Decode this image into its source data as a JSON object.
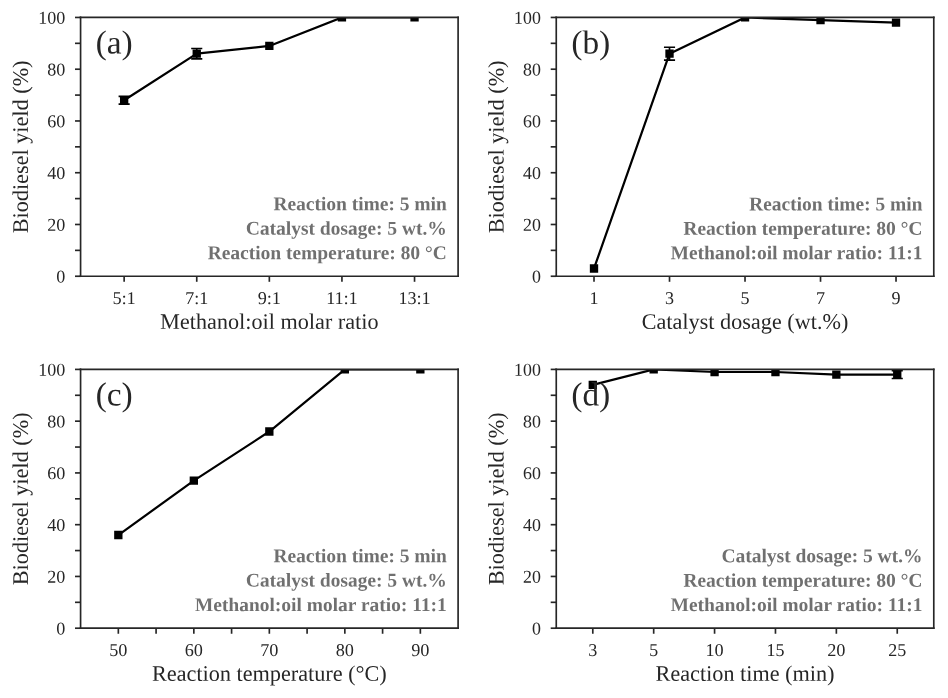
{
  "chart_data": [
    {
      "type": "line",
      "categories": [
        "5:1",
        "7:1",
        "9:1",
        "11:1",
        "13:1"
      ],
      "xlabel": "Methanol:oil molar ratio",
      "ylabel": "Biodiesel yield (%)",
      "ylim": [
        0,
        100
      ],
      "yticks": [
        0,
        {
          "value": 10,
          "label": null
        },
        20,
        {
          "value": 30,
          "label": null
        },
        40,
        {
          "value": 50,
          "label": null
        },
        60,
        {
          "value": 70,
          "label": null
        },
        80,
        {
          "value": 90,
          "label": null
        },
        100
      ],
      "marker": "square",
      "grid": false,
      "series": [
        {
          "color": "#000000",
          "values": [
            68,
            86,
            89,
            100,
            100
          ],
          "errors": [
            1.5,
            2,
            null,
            null,
            null
          ]
        }
      ],
      "annotations": [
        "(a)",
        "Reaction time: 5 min",
        "Catalyst dosage: 5 wt.%",
        "Reaction temperature: 80 °C"
      ]
    },
    {
      "type": "line",
      "x": [
        1,
        3,
        5,
        7,
        9
      ],
      "xlim": [
        0,
        10
      ],
      "xticks": [
        1,
        3,
        5,
        7,
        9
      ],
      "xlabel": "Catalyst dosage (wt.%)",
      "ylabel": "Biodiesel yield (%)",
      "ylim": [
        0,
        100
      ],
      "yticks": [
        0,
        {
          "value": 10,
          "label": null
        },
        20,
        {
          "value": 30,
          "label": null
        },
        40,
        {
          "value": 50,
          "label": null
        },
        60,
        {
          "value": 70,
          "label": null
        },
        80,
        {
          "value": 90,
          "label": null
        },
        100
      ],
      "marker": "square",
      "grid": false,
      "series": [
        {
          "color": "#000000",
          "values": [
            3,
            86,
            100,
            99,
            98
          ],
          "errors": [
            null,
            2.5,
            null,
            null,
            null
          ]
        }
      ],
      "annotations": [
        "(b)",
        "Reaction time: 5 min",
        "Reaction temperature: 80 °C",
        "Methanol:oil molar ratio: 11:1"
      ]
    },
    {
      "type": "line",
      "x": [
        50,
        60,
        70,
        80,
        90
      ],
      "xlim": [
        45,
        95
      ],
      "xticks": [
        50,
        {
          "value": 55,
          "label": null
        },
        60,
        {
          "value": 65,
          "label": null
        },
        70,
        {
          "value": 75,
          "label": null
        },
        80,
        {
          "value": 85,
          "label": null
        },
        90
      ],
      "xlabel": "Reaction temperature (°C)",
      "ylabel": "Biodiesel yield (%)",
      "ylim": [
        0,
        100
      ],
      "yticks": [
        0,
        {
          "value": 10,
          "label": null
        },
        20,
        {
          "value": 30,
          "label": null
        },
        40,
        {
          "value": 50,
          "label": null
        },
        60,
        {
          "value": 70,
          "label": null
        },
        80,
        {
          "value": 90,
          "label": null
        },
        100
      ],
      "marker": "square",
      "grid": false,
      "series": [
        {
          "color": "#000000",
          "values": [
            36,
            57,
            76,
            100,
            100
          ]
        }
      ],
      "annotations": [
        "(c)",
        "Reaction time: 5 min",
        "Catalyst dosage: 5 wt.%",
        "Methanol:oil molar ratio: 11:1"
      ]
    },
    {
      "type": "line",
      "categories": [
        "3",
        "5",
        "10",
        "15",
        "20",
        "25"
      ],
      "xlabel": "Reaction time (min)",
      "ylabel": "Biodiesel yield (%)",
      "ylim": [
        0,
        100
      ],
      "yticks": [
        0,
        {
          "value": 10,
          "label": null
        },
        20,
        {
          "value": 30,
          "label": null
        },
        40,
        {
          "value": 50,
          "label": null
        },
        60,
        {
          "value": 70,
          "label": null
        },
        80,
        {
          "value": 90,
          "label": null
        },
        100
      ],
      "marker": "square",
      "grid": false,
      "series": [
        {
          "color": "#000000",
          "values": [
            94,
            100,
            99,
            99,
            98,
            98
          ],
          "errors": [
            null,
            null,
            null,
            null,
            null,
            1.5
          ]
        }
      ],
      "annotations": [
        "(d)",
        "Catalyst dosage: 5 wt.%",
        "Reaction temperature: 80 °C",
        "Methanol:oil molar ratio: 11:1"
      ]
    }
  ]
}
